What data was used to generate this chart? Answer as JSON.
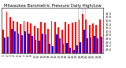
{
  "title": "Milwaukee Barometric Pressure Daily High/Low",
  "high_color": "#ff0000",
  "low_color": "#0000ff",
  "bg_color": "#ffffff",
  "ylim": [
    28.8,
    31.3
  ],
  "yticks": [
    29.0,
    29.2,
    29.4,
    29.6,
    29.8,
    30.0,
    30.2,
    30.4,
    30.6,
    30.8,
    31.0
  ],
  "days": [
    1,
    2,
    3,
    4,
    5,
    6,
    7,
    8,
    9,
    10,
    11,
    12,
    13,
    14,
    15,
    16,
    17,
    18,
    19,
    20,
    21,
    22,
    23,
    24,
    25,
    26,
    27,
    28,
    29
  ],
  "highs": [
    30.1,
    31.1,
    30.8,
    30.6,
    30.55,
    30.4,
    30.6,
    30.55,
    30.45,
    30.3,
    30.2,
    30.55,
    30.5,
    30.15,
    30.6,
    30.55,
    30.25,
    30.1,
    30.55,
    30.4,
    30.5,
    30.55,
    30.65,
    30.95,
    30.65,
    30.35,
    30.45,
    30.35,
    30.65
  ],
  "lows": [
    29.65,
    29.7,
    30.15,
    30.0,
    29.9,
    29.8,
    30.0,
    29.9,
    29.75,
    29.55,
    29.5,
    29.9,
    29.85,
    29.3,
    29.2,
    29.85,
    29.6,
    29.3,
    29.35,
    29.1,
    28.95,
    29.25,
    29.4,
    30.1,
    29.6,
    29.65,
    29.75,
    29.6,
    29.7
  ],
  "dashed_lines": [
    22.5,
    23.5,
    24.5
  ],
  "title_fontsize": 3.8,
  "tick_fontsize": 2.5,
  "bar_width": 0.42
}
